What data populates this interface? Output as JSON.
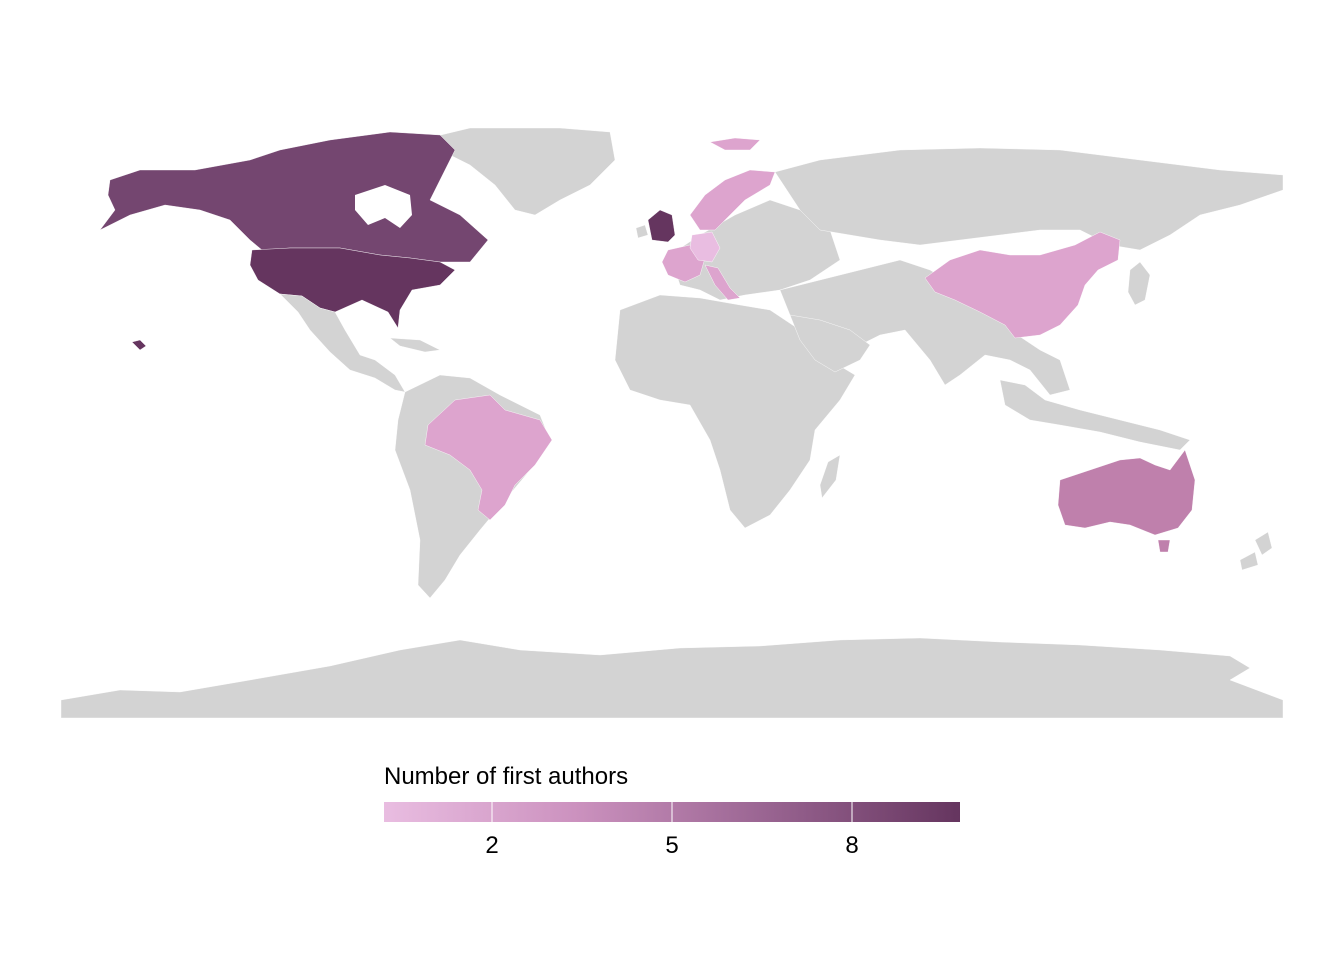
{
  "map": {
    "type": "choropleth",
    "projection": "equirectangular",
    "background_land_color": "#d3d3d3",
    "regions": [
      {
        "name": "United States",
        "value": 9,
        "color": "#65355f"
      },
      {
        "name": "Canada",
        "value": 8,
        "color": "#744670"
      },
      {
        "name": "United Kingdom",
        "value": 9,
        "color": "#65355f"
      },
      {
        "name": "Australia",
        "value": 4,
        "color": "#bf80ac"
      },
      {
        "name": "China",
        "value": 1,
        "color": "#dda4ce"
      },
      {
        "name": "Brazil",
        "value": 1,
        "color": "#dda4ce"
      },
      {
        "name": "France",
        "value": 1,
        "color": "#dda4ce"
      },
      {
        "name": "Germany",
        "value": 0,
        "color": "#e9bde1"
      },
      {
        "name": "Italy",
        "value": 1,
        "color": "#dda4ce"
      },
      {
        "name": "Norway",
        "value": 1,
        "color": "#dda4ce"
      },
      {
        "name": "Sweden",
        "value": 1,
        "color": "#dda4ce"
      }
    ]
  },
  "legend": {
    "title": "Number of first authors",
    "ticks": [
      "2",
      "5",
      "8"
    ],
    "tick_values": [
      2,
      5,
      8
    ],
    "range": [
      0.2,
      9.8
    ],
    "color_low": "#e9bde1",
    "color_high": "#65355f"
  }
}
